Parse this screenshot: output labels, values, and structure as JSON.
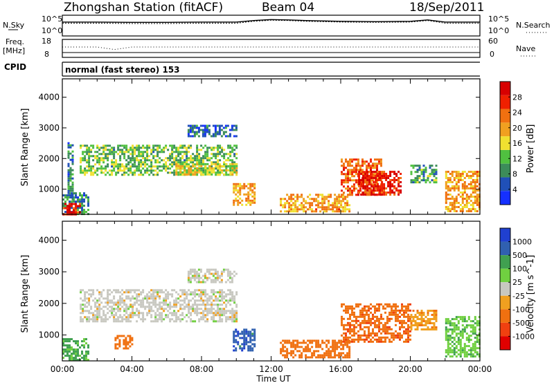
{
  "header": {
    "station": "Zhongshan Station (fitACF)",
    "beam": "Beam 04",
    "date": "18/Sep/2011"
  },
  "panels": {
    "nsky_label": "N.Sky",
    "nsky_ticks": [
      "10^5",
      "10^0"
    ],
    "nsearch_label": "N.Search",
    "nsearch_ticks": [
      "10^5",
      "10^0"
    ],
    "freq_label": "Freq.",
    "freq_unit": "[MHz]",
    "freq_ticks": [
      "18",
      "8"
    ],
    "nave_label": "Nave",
    "nave_ticks": [
      "60",
      "0"
    ],
    "cpid_label": "CPID",
    "cpid_text": "normal (fast stereo) 153"
  },
  "axes": {
    "xlabel": "Time UT",
    "ylabel": "Slant Range [km]",
    "xticks": [
      "00:00",
      "04:00",
      "08:00",
      "12:00",
      "16:00",
      "20:00",
      "00:00"
    ],
    "yticks": [
      "1000",
      "2000",
      "3000",
      "4000"
    ]
  },
  "colors": {
    "power": [
      "#1530ff",
      "#2050b8",
      "#3c8c5a",
      "#50c040",
      "#f0e030",
      "#f0a020",
      "#f07010",
      "#f02000",
      "#d80000"
    ],
    "velocity": [
      "#2040d0",
      "#3060b0",
      "#40a050",
      "#70d040",
      "#c8c8c0",
      "#f0a020",
      "#f07010",
      "#f04010",
      "#e00000"
    ]
  },
  "chart_data": [
    {
      "type": "line",
      "title": "Zhongshan Station (fitACF)",
      "xlabel": "Time UT",
      "ylabel": "N.Sky",
      "ylim": [
        1,
        100000
      ],
      "yscale": "log",
      "x": [
        "00:00",
        "02:00",
        "04:00",
        "06:00",
        "08:00",
        "10:00",
        "11:00",
        "12:00",
        "13:00",
        "14:00",
        "16:00",
        "18:00",
        "20:00",
        "21:00",
        "22:00",
        "24:00"
      ],
      "series": [
        {
          "name": "N.Sky",
          "values": [
            3000,
            3000,
            2500,
            2500,
            3000,
            3000,
            8000,
            15000,
            12000,
            8000,
            5000,
            4000,
            5000,
            12000,
            3000,
            3000
          ]
        },
        {
          "name": "N.Search",
          "values": [
            1500,
            1500,
            1200,
            1200,
            1500,
            1500,
            5000,
            10000,
            8000,
            5000,
            3000,
            2500,
            3000,
            8000,
            1500,
            1500
          ]
        }
      ]
    },
    {
      "type": "line",
      "ylabel": "Freq. [MHz]",
      "ylim": [
        8,
        18
      ],
      "x": [
        "00:00",
        "02:00",
        "03:00",
        "04:00",
        "12:00",
        "24:00"
      ],
      "series": [
        {
          "name": "Freq.",
          "values": [
            10.5,
            10.5,
            10.5,
            10.5,
            10.5,
            10.5
          ]
        },
        {
          "name": "Nave",
          "values": [
            35,
            35,
            26,
            35,
            35,
            35
          ]
        }
      ]
    },
    {
      "type": "heatmap",
      "title": "Power [dB]",
      "xlabel": "Time UT",
      "ylabel": "Slant Range [km]",
      "xlim": [
        0,
        24
      ],
      "ylim": [
        180,
        4600
      ],
      "colorbar": {
        "label": "Power [dB]",
        "ticks": [
          4,
          8,
          12,
          16,
          20,
          24,
          28
        ],
        "range": [
          0,
          32
        ]
      },
      "regions": [
        {
          "t0": 0.0,
          "t1": 1.5,
          "r0": 200,
          "r1": 900,
          "level": 8
        },
        {
          "t0": 0.0,
          "t1": 1.0,
          "r0": 200,
          "r1": 550,
          "level": 28
        },
        {
          "t0": 0.3,
          "t1": 0.6,
          "r0": 700,
          "r1": 2600,
          "level": 8
        },
        {
          "t0": 1.0,
          "t1": 10.0,
          "r0": 1450,
          "r1": 2450,
          "level": 12
        },
        {
          "t0": 6.5,
          "t1": 10.0,
          "r0": 1500,
          "r1": 1850,
          "level": 16
        },
        {
          "t0": 7.2,
          "t1": 10.0,
          "r0": 2700,
          "r1": 3100,
          "level": 6
        },
        {
          "t0": 9.8,
          "t1": 11.0,
          "r0": 500,
          "r1": 1200,
          "level": 20
        },
        {
          "t0": 12.5,
          "t1": 16.5,
          "r0": 300,
          "r1": 850,
          "level": 20
        },
        {
          "t0": 16.0,
          "t1": 18.3,
          "r0": 800,
          "r1": 2000,
          "level": 24
        },
        {
          "t0": 17.0,
          "t1": 19.5,
          "r0": 800,
          "r1": 1600,
          "level": 28
        },
        {
          "t0": 20.0,
          "t1": 21.5,
          "r0": 1200,
          "r1": 1800,
          "level": 10
        },
        {
          "t0": 22.0,
          "t1": 24.0,
          "r0": 300,
          "r1": 1600,
          "level": 20
        }
      ]
    },
    {
      "type": "heatmap",
      "title": "Velocity [m s-1]",
      "xlabel": "Time UT",
      "ylabel": "Slant Range [km]",
      "xlim": [
        0,
        24
      ],
      "ylim": [
        180,
        4600
      ],
      "colorbar": {
        "label": "Velocity [m s^-1]",
        "ticks": [
          1000,
          500,
          100,
          25,
          -25,
          -100,
          -500,
          -1000
        ]
      },
      "regions": [
        {
          "t0": 0.0,
          "t1": 1.5,
          "r0": 200,
          "r1": 900,
          "level": 120
        },
        {
          "t0": 1.0,
          "t1": 10.0,
          "r0": 1450,
          "r1": 2450,
          "level": 0
        },
        {
          "t0": 7.2,
          "t1": 10.0,
          "r0": 2700,
          "r1": 3100,
          "level": 0
        },
        {
          "t0": 3.0,
          "t1": 4.0,
          "r0": 600,
          "r1": 1000,
          "level": -300
        },
        {
          "t0": 9.8,
          "t1": 11.0,
          "r0": 500,
          "r1": 1200,
          "level": 800
        },
        {
          "t0": 12.5,
          "t1": 16.5,
          "r0": 300,
          "r1": 850,
          "level": -200
        },
        {
          "t0": 16.0,
          "t1": 20.0,
          "r0": 800,
          "r1": 2000,
          "level": -400
        },
        {
          "t0": 20.0,
          "t1": 21.5,
          "r0": 1200,
          "r1": 1800,
          "level": -80
        },
        {
          "t0": 22.0,
          "t1": 24.0,
          "r0": 300,
          "r1": 1600,
          "level": 80
        }
      ]
    }
  ]
}
